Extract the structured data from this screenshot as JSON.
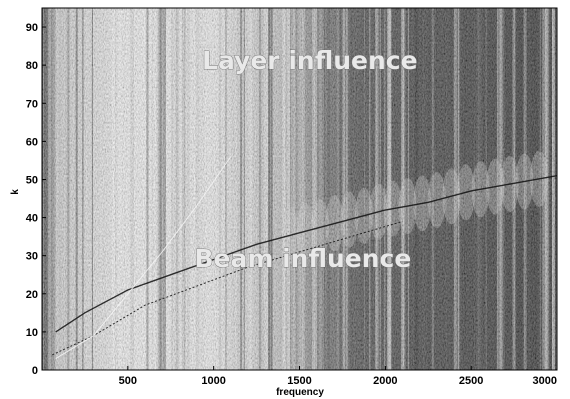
{
  "chart_data": {
    "type": "heatmap",
    "title": "",
    "xlabel": "frequency",
    "ylabel": "k",
    "xlim": [
      0,
      3000
    ],
    "ylim": [
      0,
      95
    ],
    "xticks": [
      500,
      1000,
      1500,
      2000,
      2500,
      3000
    ],
    "yticks": [
      0,
      10,
      20,
      30,
      40,
      50,
      60,
      70,
      80,
      90
    ],
    "colormap": "grayscale",
    "grid": false,
    "annotations": [
      {
        "text": "Layer influence",
        "x": 1560,
        "y": 79
      },
      {
        "text": "Beam influence",
        "x": 1520,
        "y": 27
      }
    ],
    "ridges": [
      {
        "name": "",
        "x": [
          80,
          250,
          500,
          750,
          1000,
          1250,
          1500,
          1750,
          2000,
          2250,
          2500,
          2750,
          3000
        ],
        "y": [
          10,
          15,
          21,
          25,
          29,
          33,
          36,
          39,
          42,
          44,
          47,
          49,
          51
        ]
      },
      {
        "name": "",
        "x": [
          60,
          300,
          600,
          900,
          1200,
          1500,
          1800,
          2100
        ],
        "y": [
          4,
          9,
          17,
          22,
          27,
          31,
          35,
          39
        ]
      },
      {
        "name": "",
        "x": [
          80,
          300,
          500,
          700,
          900,
          1100
        ],
        "y": [
          3,
          9,
          20,
          31,
          43,
          56
        ]
      }
    ],
    "colors": {
      "dark": "#0a0a0a",
      "light": "#ffffff",
      "ridge": "#111111"
    }
  }
}
